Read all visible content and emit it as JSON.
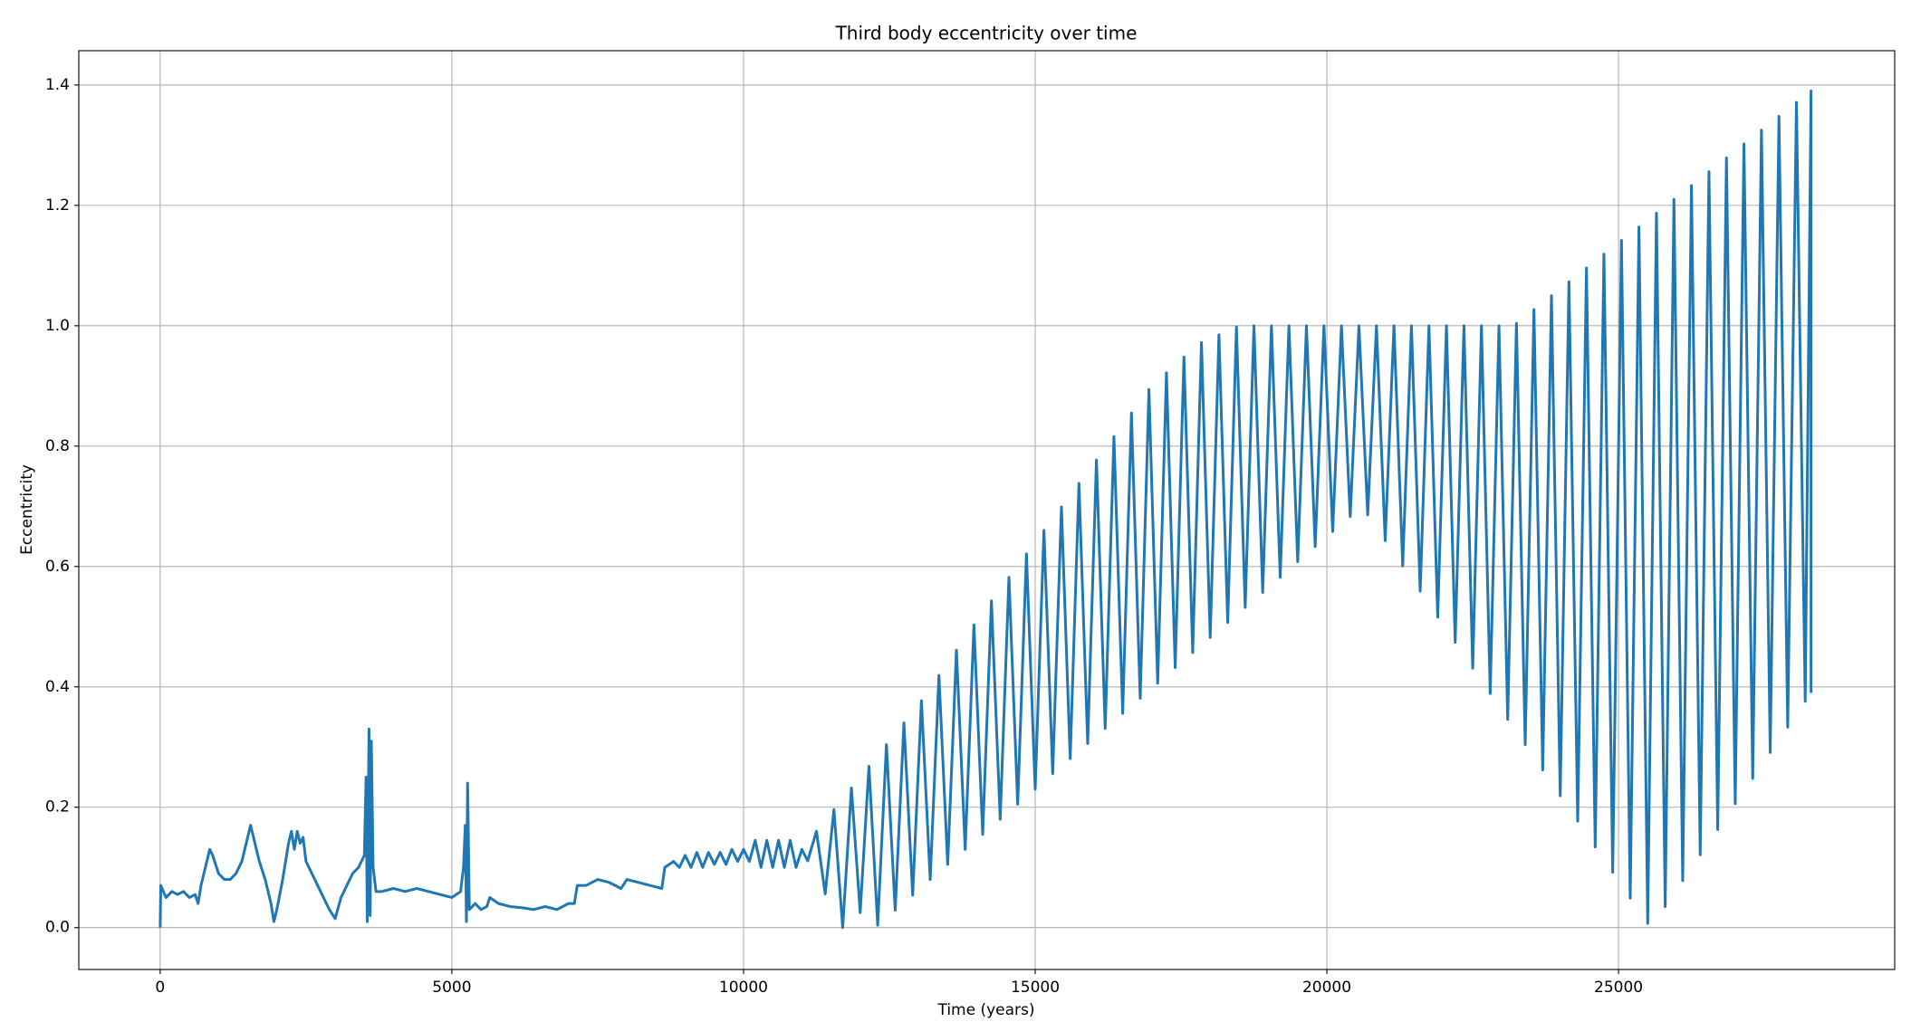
{
  "chart_data": {
    "type": "line",
    "title": "Third body eccentricity over time",
    "x_label": "Time (years)",
    "y_label": "Eccentricity",
    "color": "#1f77b4",
    "grid": true,
    "xlim": [
      -1395,
      29734
    ],
    "ylim": [
      -0.0696,
      1.457
    ],
    "xticks": [
      0,
      5000,
      10000,
      15000,
      20000,
      25000
    ],
    "yticks": [
      {
        "value": 0,
        "label": "0.0"
      },
      0.2,
      0.4,
      0.6,
      0.8,
      {
        "value": 1,
        "label": "1.0"
      },
      1.2,
      1.4
    ],
    "x": [
      0,
      10,
      100,
      200,
      300,
      400,
      500,
      600,
      650,
      700,
      800,
      850,
      900,
      1000,
      1100,
      1200,
      1300,
      1400,
      1500,
      1550,
      1600,
      1700,
      1800,
      1900,
      1950,
      2000,
      2100,
      2200,
      2250,
      2300,
      2350,
      2400,
      2450,
      2500,
      2600,
      2700,
      2800,
      2900,
      3000,
      3100,
      3200,
      3300,
      3400,
      3500,
      3530,
      3550,
      3580,
      3600,
      3620,
      3650,
      3700,
      3800,
      4000,
      4200,
      4400,
      4600,
      4800,
      5000,
      5150,
      5200,
      5230,
      5250,
      5270,
      5300,
      5400,
      5500,
      5600,
      5650,
      5800,
      6000,
      6200,
      6400,
      6600,
      6800,
      7000,
      7100,
      7150,
      7300,
      7500,
      7700,
      7900,
      8000,
      8200,
      8400,
      8600,
      8650,
      8800,
      8900,
      9000,
      9100,
      9200,
      9300,
      9400,
      9500,
      9600,
      9700,
      9800,
      9900,
      10000,
      10100,
      10200,
      10300,
      10400,
      10500,
      10600,
      10700,
      10800,
      10900,
      11000,
      11100,
      11250,
      11400,
      11550,
      11700,
      11850,
      12000,
      12150,
      12300,
      12450,
      12600,
      12750,
      12900,
      13050,
      13200,
      13350,
      13500,
      13650,
      13800,
      13950,
      14100,
      14250,
      14400,
      14550,
      14700,
      14850,
      15000,
      15150,
      15300,
      15450,
      15600,
      15750,
      15900,
      16050,
      16200,
      16350,
      16500,
      16650,
      16800,
      16950,
      17100,
      17250,
      17400,
      17550,
      17700,
      17850,
      18000,
      18150,
      18300,
      18450,
      18600,
      18750,
      18900,
      19050,
      19200,
      19350,
      19500,
      19650,
      19800,
      19950,
      20100,
      20250,
      20400,
      20550,
      20700,
      20850,
      21000,
      21150,
      21300,
      21450,
      21600,
      21750,
      21900,
      22050,
      22200,
      22350,
      22500,
      22650,
      22800,
      22950,
      23100,
      23250,
      23400,
      23550,
      23700,
      23850,
      24000,
      24150,
      24300,
      24450,
      24600,
      24750,
      24900,
      25050,
      25200,
      25350,
      25500,
      25650,
      25800,
      25950,
      26100,
      26250,
      26400,
      26550,
      26700,
      26850,
      27000,
      27150,
      27300,
      27450,
      27600,
      27750,
      27900,
      28050,
      28200,
      28300,
      28300
    ],
    "values": [
      0.0,
      0.07,
      0.05,
      0.06,
      0.055,
      0.06,
      0.05,
      0.055,
      0.04,
      0.07,
      0.11,
      0.13,
      0.12,
      0.09,
      0.08,
      0.08,
      0.09,
      0.11,
      0.15,
      0.17,
      0.15,
      0.11,
      0.08,
      0.04,
      0.01,
      0.03,
      0.08,
      0.14,
      0.16,
      0.13,
      0.16,
      0.14,
      0.15,
      0.11,
      0.09,
      0.07,
      0.05,
      0.03,
      0.015,
      0.05,
      0.07,
      0.09,
      0.1,
      0.12,
      0.25,
      0.01,
      0.33,
      0.02,
      0.31,
      0.1,
      0.06,
      0.06,
      0.065,
      0.06,
      0.065,
      0.06,
      0.055,
      0.05,
      0.06,
      0.1,
      0.17,
      0.01,
      0.24,
      0.03,
      0.04,
      0.03,
      0.035,
      0.05,
      0.04,
      0.035,
      0.033,
      0.03,
      0.035,
      0.03,
      0.04,
      0.04,
      0.07,
      0.07,
      0.08,
      0.075,
      0.065,
      0.08,
      0.075,
      0.07,
      0.065,
      0.1,
      0.11,
      0.1,
      0.12,
      0.1,
      0.125,
      0.1,
      0.125,
      0.105,
      0.125,
      0.105,
      0.13,
      0.11,
      0.13,
      0.11,
      0.145,
      0.1,
      0.145,
      0.1,
      0.145,
      0.1,
      0.145,
      0.1,
      0.13,
      0.111,
      0.16,
      0.056,
      0.196,
      0.0,
      0.232,
      0.025,
      0.268,
      0.004,
      0.304,
      0.029,
      0.34,
      0.054,
      0.377,
      0.08,
      0.419,
      0.105,
      0.461,
      0.13,
      0.503,
      0.155,
      0.543,
      0.18,
      0.582,
      0.205,
      0.621,
      0.23,
      0.66,
      0.256,
      0.699,
      0.281,
      0.738,
      0.306,
      0.777,
      0.331,
      0.816,
      0.356,
      0.855,
      0.381,
      0.894,
      0.406,
      0.922,
      0.432,
      0.948,
      0.457,
      0.972,
      0.482,
      0.985,
      0.507,
      0.998,
      0.532,
      1.0,
      0.557,
      1.0,
      0.582,
      1.0,
      0.608,
      1.0,
      0.633,
      1.0,
      0.658,
      1.0,
      0.683,
      1.0,
      0.686,
      1.0,
      0.643,
      1.0,
      0.601,
      1.0,
      0.559,
      1.0,
      0.516,
      1.0,
      0.474,
      1.0,
      0.431,
      1.0,
      0.389,
      1.0,
      0.346,
      1.004,
      0.304,
      1.027,
      0.262,
      1.05,
      0.219,
      1.073,
      0.177,
      1.096,
      0.134,
      1.119,
      0.092,
      1.142,
      0.049,
      1.164,
      0.007,
      1.187,
      0.035,
      1.21,
      0.078,
      1.233,
      0.121,
      1.256,
      0.163,
      1.279,
      0.206,
      1.302,
      0.248,
      1.325,
      0.291,
      1.348,
      0.333,
      1.371,
      0.376,
      1.39,
      0.39
    ]
  }
}
